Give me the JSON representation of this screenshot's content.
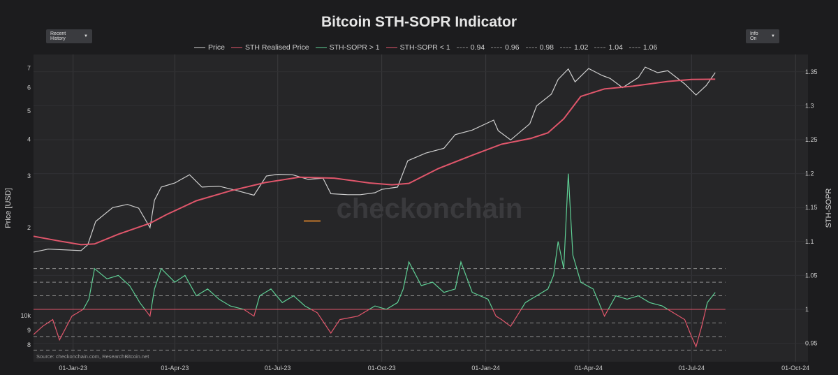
{
  "title": "Bitcoin STH-SOPR Indicator",
  "controls": {
    "left_dropdown": "Recent History",
    "right_dropdown": "Info On"
  },
  "watermark": "checkonchain",
  "source": "Source: checkonchain.com, ResearchBitcoin.net",
  "legend": [
    {
      "label": "Price",
      "color": "#cfcfcf",
      "style": "solid"
    },
    {
      "label": "STH Realised Price",
      "color": "#e0566b",
      "style": "solid"
    },
    {
      "label": "STH-SOPR > 1",
      "color": "#5fcf95",
      "style": "solid"
    },
    {
      "label": "STH-SOPR < 1",
      "color": "#e0566b",
      "style": "solid"
    },
    {
      "label": "0.94",
      "color": "#8a8a8a",
      "style": "dash"
    },
    {
      "label": "0.96",
      "color": "#8a8a8a",
      "style": "dash"
    },
    {
      "label": "0.98",
      "color": "#8a8a8a",
      "style": "dash"
    },
    {
      "label": "1.02",
      "color": "#8a8a8a",
      "style": "dash"
    },
    {
      "label": "1.04",
      "color": "#8a8a8a",
      "style": "dash"
    },
    {
      "label": "1.06",
      "color": "#8a8a8a",
      "style": "dash"
    }
  ],
  "chart_data": {
    "type": "line",
    "title": "Bitcoin STH-SOPR Indicator",
    "y_left_label": "Price [USD]",
    "y_right_label": "STH-SOPR",
    "y_left_scale": "log",
    "y_left_ticks": [
      "10k",
      "9",
      "8",
      "2",
      "3",
      "4",
      "5",
      "6",
      "7"
    ],
    "y_right_ticks": [
      "0.95",
      "1",
      "1.05",
      "1.1",
      "1.15",
      "1.2",
      "1.25",
      "1.3",
      "1.35"
    ],
    "y_right_range": [
      0.925,
      1.37
    ],
    "x_ticks": [
      "01-Jan-23",
      "01-Apr-23",
      "01-Jul-23",
      "01-Oct-23",
      "01-Jan-24",
      "01-Apr-24",
      "01-Jul-24",
      "01-Oct-24"
    ],
    "x_range": [
      "2022-11-27",
      "2024-10-12"
    ],
    "grid": true,
    "reference_lines": [
      0.94,
      0.96,
      0.98,
      1.02,
      1.04,
      1.06
    ],
    "series": [
      {
        "name": "Price",
        "color": "#cfcfcf",
        "x": [
          "2022-11-27",
          "2022-12-10",
          "2022-12-25",
          "2023-01-08",
          "2023-01-14",
          "2023-01-21",
          "2023-02-05",
          "2023-02-18",
          "2023-02-28",
          "2023-03-10",
          "2023-03-14",
          "2023-03-20",
          "2023-04-01",
          "2023-04-14",
          "2023-04-25",
          "2023-05-10",
          "2023-05-25",
          "2023-06-10",
          "2023-06-21",
          "2023-07-01",
          "2023-07-14",
          "2023-07-28",
          "2023-08-10",
          "2023-08-17",
          "2023-09-01",
          "2023-09-12",
          "2023-09-25",
          "2023-10-01",
          "2023-10-15",
          "2023-10-24",
          "2023-11-09",
          "2023-11-25",
          "2023-12-05",
          "2023-12-20",
          "2024-01-08",
          "2024-01-12",
          "2024-01-23",
          "2024-02-09",
          "2024-02-15",
          "2024-02-28",
          "2024-03-05",
          "2024-03-14",
          "2024-03-20",
          "2024-04-01",
          "2024-04-13",
          "2024-04-20",
          "2024-05-01",
          "2024-05-15",
          "2024-05-21",
          "2024-06-01",
          "2024-06-10",
          "2024-06-25",
          "2024-07-05",
          "2024-07-14",
          "2024-07-22"
        ],
        "y": [
          16500,
          16900,
          16800,
          16700,
          17500,
          21000,
          23400,
          24000,
          23300,
          20000,
          24800,
          27500,
          28400,
          30300,
          27500,
          27700,
          26800,
          25800,
          30000,
          30400,
          30300,
          29200,
          29500,
          26100,
          25900,
          25900,
          26300,
          27000,
          27500,
          33800,
          35900,
          37300,
          41500,
          43000,
          46500,
          42800,
          39800,
          45200,
          52000,
          57000,
          64000,
          69500,
          62800,
          69700,
          66000,
          64500,
          60000,
          65000,
          70500,
          67500,
          68500,
          61800,
          56600,
          61000,
          67500
        ]
      },
      {
        "name": "STH Realised Price",
        "color": "#e0566b",
        "x": [
          "2022-11-27",
          "2022-12-20",
          "2023-01-08",
          "2023-01-20",
          "2023-02-10",
          "2023-03-10",
          "2023-03-25",
          "2023-04-20",
          "2023-05-20",
          "2023-06-20",
          "2023-07-20",
          "2023-08-20",
          "2023-09-20",
          "2023-10-10",
          "2023-10-25",
          "2023-11-20",
          "2023-12-20",
          "2024-01-15",
          "2024-02-10",
          "2024-02-25",
          "2024-03-10",
          "2024-03-25",
          "2024-04-15",
          "2024-05-10",
          "2024-06-10",
          "2024-07-01",
          "2024-07-22"
        ],
        "y": [
          18700,
          18000,
          17500,
          17600,
          19000,
          20700,
          22200,
          24700,
          26700,
          28500,
          29700,
          29500,
          28400,
          28000,
          28300,
          31800,
          35300,
          38500,
          40300,
          42100,
          47000,
          56000,
          59400,
          60700,
          63000,
          64000,
          64100
        ]
      },
      {
        "name": "STH-SOPR",
        "color": "#5fcf95",
        "x": [
          "2022-11-27",
          "2022-12-05",
          "2022-12-14",
          "2022-12-20",
          "2022-12-31",
          "2023-01-10",
          "2023-01-15",
          "2023-01-20",
          "2023-01-31",
          "2023-02-10",
          "2023-02-20",
          "2023-03-01",
          "2023-03-10",
          "2023-03-14",
          "2023-03-20",
          "2023-04-01",
          "2023-04-10",
          "2023-04-20",
          "2023-04-30",
          "2023-05-10",
          "2023-05-20",
          "2023-06-01",
          "2023-06-10",
          "2023-06-15",
          "2023-06-25",
          "2023-07-05",
          "2023-07-15",
          "2023-07-25",
          "2023-08-05",
          "2023-08-17",
          "2023-08-25",
          "2023-09-10",
          "2023-09-25",
          "2023-10-05",
          "2023-10-15",
          "2023-10-20",
          "2023-10-25",
          "2023-11-05",
          "2023-11-15",
          "2023-11-25",
          "2023-12-05",
          "2023-12-10",
          "2023-12-20",
          "2024-01-03",
          "2024-01-10",
          "2024-01-15",
          "2024-01-23",
          "2024-02-05",
          "2024-02-15",
          "2024-02-25",
          "2024-03-01",
          "2024-03-05",
          "2024-03-10",
          "2024-03-14",
          "2024-03-18",
          "2024-03-25",
          "2024-04-05",
          "2024-04-15",
          "2024-04-25",
          "2024-05-05",
          "2024-05-15",
          "2024-05-25",
          "2024-06-05",
          "2024-06-15",
          "2024-06-25",
          "2024-07-01",
          "2024-07-05",
          "2024-07-10",
          "2024-07-15",
          "2024-07-22"
        ],
        "y": [
          0.963,
          0.975,
          0.985,
          0.955,
          0.99,
          1.0,
          1.015,
          1.06,
          1.045,
          1.05,
          1.035,
          1.01,
          0.99,
          1.03,
          1.06,
          1.04,
          1.05,
          1.02,
          1.03,
          1.015,
          1.005,
          1.0,
          0.99,
          1.02,
          1.03,
          1.01,
          1.02,
          1.005,
          0.995,
          0.965,
          0.985,
          0.99,
          1.005,
          1.0,
          1.01,
          1.03,
          1.07,
          1.035,
          1.04,
          1.025,
          1.03,
          1.07,
          1.025,
          1.015,
          0.99,
          0.985,
          0.975,
          1.01,
          1.02,
          1.03,
          1.05,
          1.1,
          1.06,
          1.2,
          1.08,
          1.04,
          1.03,
          0.99,
          1.02,
          1.015,
          1.02,
          1.01,
          1.005,
          0.995,
          0.985,
          0.96,
          0.945,
          0.975,
          1.01,
          1.025
        ]
      }
    ]
  },
  "x_labels_drawn": [
    "01-Jan-23",
    "01-Apr-23",
    "01-Jul-23",
    "01-Oct-23",
    "01-Jan-24",
    "01-Apr-24",
    "01-Jul-24",
    "01-Oct-24"
  ]
}
